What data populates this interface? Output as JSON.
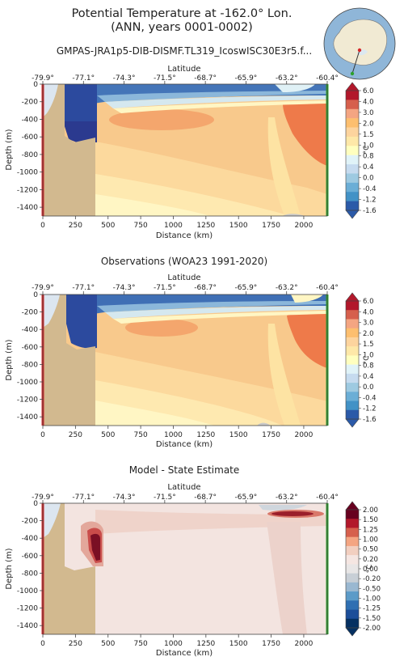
{
  "figure": {
    "title_line1": "Potential Temperature at -162.0° Lon.",
    "title_line2": "(ANN, years 0001-0002)"
  },
  "chart_data": [
    {
      "type": "heatmap",
      "title": "GMPAS-JRA1p5-DIB-DISMF.TL319_IcoswISC30E3r5.f...",
      "xlabel": "Distance (km)",
      "ylabel": "Depth (m)",
      "top_axis_label": "Latitude",
      "xlim": [
        0,
        2180
      ],
      "ylim": [
        -1500,
        0
      ],
      "x_ticks": [
        0,
        250,
        500,
        750,
        1000,
        1250,
        1500,
        1750,
        2000
      ],
      "y_ticks": [
        0,
        -200,
        -400,
        -600,
        -800,
        -1000,
        -1200,
        -1400
      ],
      "lat_ticks": [
        "-79.9°",
        "-77.1°",
        "-74.3°",
        "-71.5°",
        "-68.7°",
        "-65.9°",
        "-63.2°",
        "-60.4°"
      ],
      "colorbar_unit": "°C",
      "colorbar_ticks": [
        "6.0",
        "4.0",
        "3.0",
        "2.0",
        "1.5",
        "1.0",
        "0.8",
        "0.4",
        "0.0",
        "-0.4",
        "-1.2",
        "-1.6"
      ],
      "colorbar_colors": [
        "#b2182b",
        "#d6604d",
        "#f4a582",
        "#fdbf6f",
        "#fdd49e",
        "#fee8a8",
        "#ffffbf",
        "#e0f3f8",
        "#c6dbef",
        "#9ecae1",
        "#6baed6",
        "#4292c6",
        "#2b5aa8"
      ]
    },
    {
      "type": "heatmap",
      "title": "Observations (WOA23 1991-2020)",
      "xlabel": "Distance (km)",
      "ylabel": "Depth (m)",
      "top_axis_label": "Latitude",
      "xlim": [
        0,
        2180
      ],
      "ylim": [
        -1500,
        0
      ],
      "x_ticks": [
        0,
        250,
        500,
        750,
        1000,
        1250,
        1500,
        1750,
        2000
      ],
      "y_ticks": [
        0,
        -200,
        -400,
        -600,
        -800,
        -1000,
        -1200,
        -1400
      ],
      "lat_ticks": [
        "-79.9°",
        "-77.1°",
        "-74.3°",
        "-71.5°",
        "-68.7°",
        "-65.9°",
        "-63.2°",
        "-60.4°"
      ],
      "colorbar_unit": "°C",
      "colorbar_ticks": [
        "6.0",
        "4.0",
        "3.0",
        "2.0",
        "1.5",
        "1.0",
        "0.8",
        "0.4",
        "0.0",
        "-0.4",
        "-1.2",
        "-1.6"
      ]
    },
    {
      "type": "heatmap",
      "title": "Model - State Estimate",
      "xlabel": "Distance (km)",
      "ylabel": "Depth (m)",
      "top_axis_label": "Latitude",
      "xlim": [
        0,
        2180
      ],
      "ylim": [
        -1500,
        0
      ],
      "x_ticks": [
        0,
        250,
        500,
        750,
        1000,
        1250,
        1500,
        1750,
        2000
      ],
      "y_ticks": [
        0,
        -200,
        -400,
        -600,
        -800,
        -1000,
        -1200,
        -1400
      ],
      "lat_ticks": [
        "-79.9°",
        "-77.1°",
        "-74.3°",
        "-71.5°",
        "-68.7°",
        "-65.9°",
        "-63.2°",
        "-60.4°"
      ],
      "colorbar_unit": "°C",
      "colorbar_ticks": [
        "2.00",
        "1.50",
        "1.25",
        "1.00",
        "0.50",
        "0.20",
        "0.00",
        "-0.20",
        "-0.50",
        "-1.00",
        "-1.25",
        "-1.50",
        "-2.00"
      ],
      "colorbar_colors": [
        "#67001f",
        "#b2182b",
        "#d6604d",
        "#f4a582",
        "#f2cfc0",
        "#f5e6e2",
        "#e8e6e6",
        "#c8cfd6",
        "#9ab8d1",
        "#5c9bc8",
        "#2f6fb2",
        "#1c4e99",
        "#053061"
      ]
    }
  ]
}
